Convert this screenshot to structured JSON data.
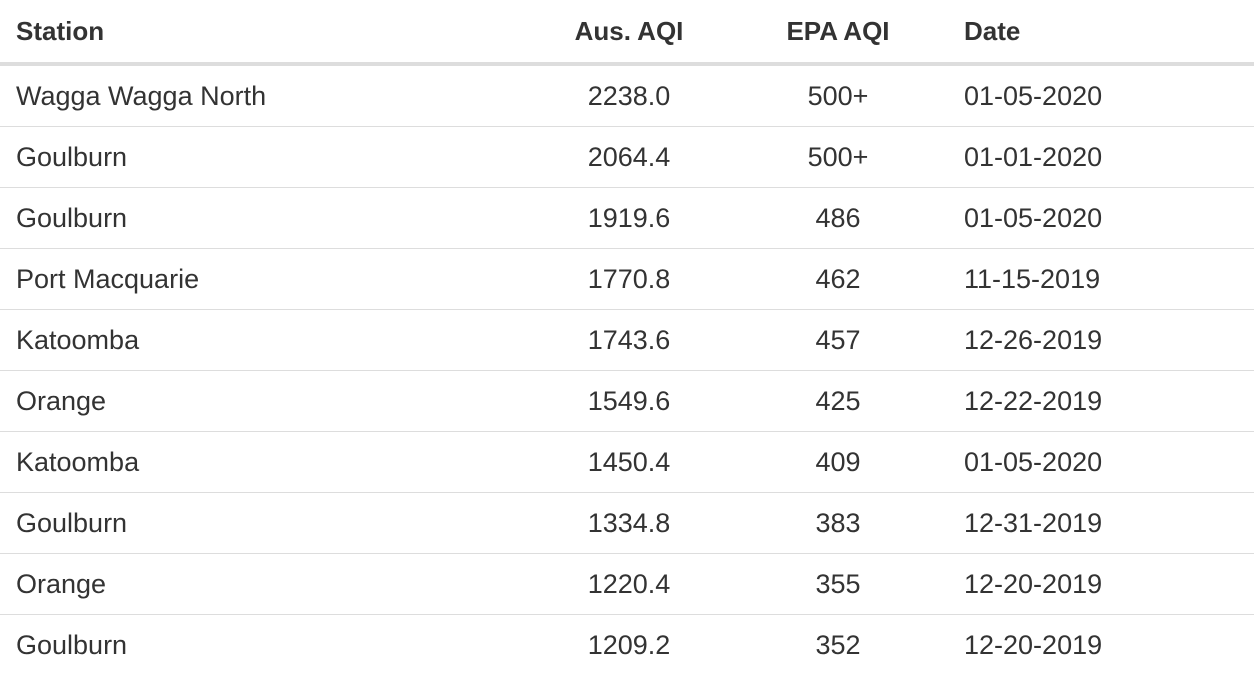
{
  "table": {
    "headers": {
      "station": "Station",
      "aus_aqi": "Aus. AQI",
      "epa_aqi": "EPA AQI",
      "date": "Date"
    },
    "rows": [
      {
        "station": "Wagga Wagga North",
        "aus_aqi": "2238.0",
        "epa_aqi": "500+",
        "date": "01-05-2020"
      },
      {
        "station": "Goulburn",
        "aus_aqi": "2064.4",
        "epa_aqi": "500+",
        "date": "01-01-2020"
      },
      {
        "station": "Goulburn",
        "aus_aqi": "1919.6",
        "epa_aqi": "486",
        "date": "01-05-2020"
      },
      {
        "station": "Port Macquarie",
        "aus_aqi": "1770.8",
        "epa_aqi": "462",
        "date": "11-15-2019"
      },
      {
        "station": "Katoomba",
        "aus_aqi": "1743.6",
        "epa_aqi": "457",
        "date": "12-26-2019"
      },
      {
        "station": "Orange",
        "aus_aqi": "1549.6",
        "epa_aqi": "425",
        "date": "12-22-2019"
      },
      {
        "station": "Katoomba",
        "aus_aqi": "1450.4",
        "epa_aqi": "409",
        "date": "01-05-2020"
      },
      {
        "station": "Goulburn",
        "aus_aqi": "1334.8",
        "epa_aqi": "383",
        "date": "12-31-2019"
      },
      {
        "station": "Orange",
        "aus_aqi": "1220.4",
        "epa_aqi": "355",
        "date": "12-20-2019"
      },
      {
        "station": "Goulburn",
        "aus_aqi": "1209.2",
        "epa_aqi": "352",
        "date": "12-20-2019"
      }
    ]
  },
  "colors": {
    "text": "#333333",
    "border": "#dddddd",
    "background": "#ffffff"
  }
}
